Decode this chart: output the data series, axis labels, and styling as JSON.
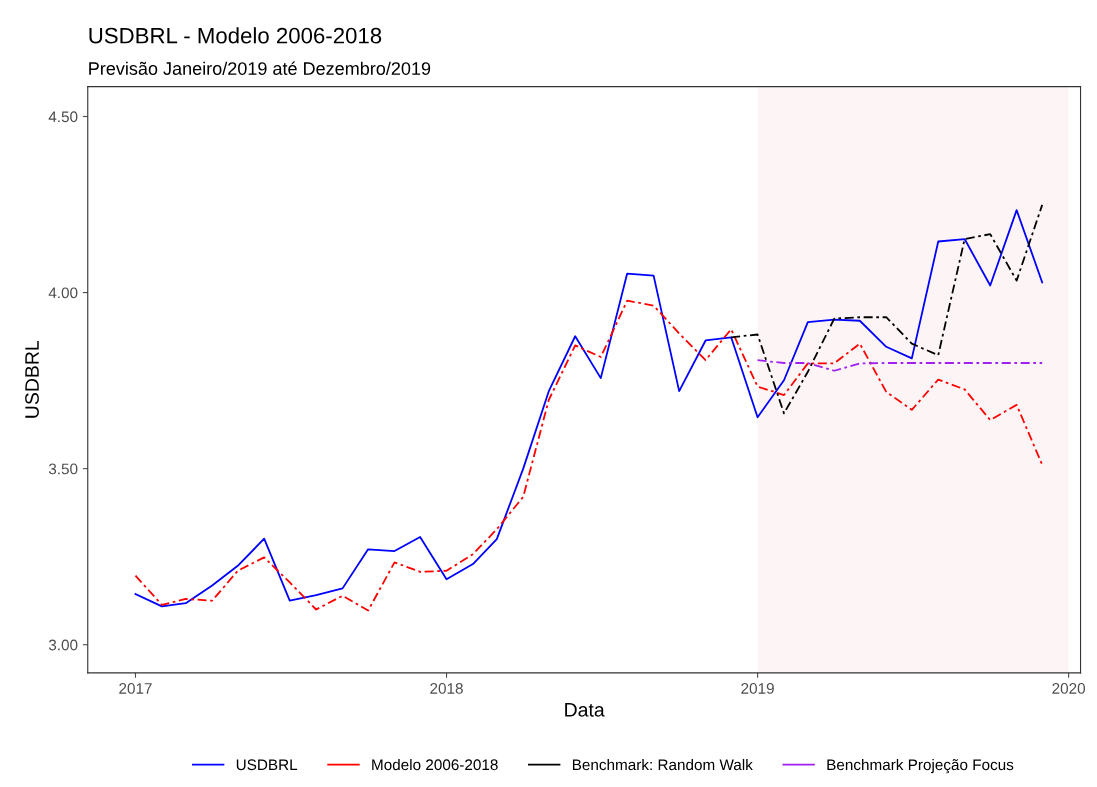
{
  "chart_data": {
    "type": "line",
    "title": "USDBRL - Modelo 2006-2018",
    "subtitle": "Previsão Janeiro/2019 até Dezembro/2019",
    "xlabel": "Data",
    "ylabel": "USDBRL",
    "xlim": [
      "2016-11-06",
      "2020-01-15"
    ],
    "xticks": [
      "2017",
      "2018",
      "2019",
      "2020"
    ],
    "ylim": [
      2.92,
      4.585
    ],
    "yticks": [
      {
        "value": 3,
        "label": "3.00"
      },
      {
        "value": 3.5,
        "label": "3.50"
      },
      {
        "value": 4,
        "label": "4.00"
      },
      {
        "value": 4.5,
        "label": "4.50"
      }
    ],
    "grid": false,
    "legend": "bottom",
    "marker": "none",
    "bands": [
      {
        "axis": "x",
        "from": "2019-01",
        "to": "2020-01",
        "color": "#fdf5f5"
      }
    ],
    "series": [
      {
        "name": "USDBRL",
        "color": "#0000ff",
        "line_style": "solid",
        "x": [
          "2017-01",
          "2017-02",
          "2017-03",
          "2017-04",
          "2017-05",
          "2017-06",
          "2017-07",
          "2017-08",
          "2017-09",
          "2017-10",
          "2017-11",
          "2017-12",
          "2018-01",
          "2018-02",
          "2018-03",
          "2018-04",
          "2018-05",
          "2018-06",
          "2018-07",
          "2018-08",
          "2018-09",
          "2018-10",
          "2018-11",
          "2018-12",
          "2019-01",
          "2019-02",
          "2019-03",
          "2019-04",
          "2019-05",
          "2019-06",
          "2019-07",
          "2019-08",
          "2019-09",
          "2019-10",
          "2019-11",
          "2019-12"
        ],
        "values": [
          3.144,
          3.109,
          3.118,
          3.168,
          3.224,
          3.301,
          3.125,
          3.141,
          3.16,
          3.271,
          3.266,
          3.306,
          3.186,
          3.229,
          3.3,
          3.5,
          3.72,
          3.876,
          3.757,
          4.054,
          4.048,
          3.72,
          3.864,
          3.873,
          3.646,
          3.751,
          3.916,
          3.923,
          3.92,
          3.846,
          3.813,
          4.145,
          4.152,
          4.02,
          4.234,
          4.029
        ]
      },
      {
        "name": "Modelo 2006-2018",
        "color": "#ff0000",
        "line_style": "dashed",
        "x": [
          "2017-01",
          "2017-02",
          "2017-03",
          "2017-04",
          "2017-05",
          "2017-06",
          "2017-07",
          "2017-08",
          "2017-09",
          "2017-10",
          "2017-11",
          "2017-12",
          "2018-01",
          "2018-02",
          "2018-03",
          "2018-04",
          "2018-05",
          "2018-06",
          "2018-07",
          "2018-08",
          "2018-09",
          "2018-10",
          "2018-11",
          "2018-12",
          "2019-01",
          "2019-02",
          "2019-03",
          "2019-04",
          "2019-05",
          "2019-06",
          "2019-07",
          "2019-08",
          "2019-09",
          "2019-10",
          "2019-11",
          "2019-12"
        ],
        "values": [
          3.196,
          3.113,
          3.13,
          3.125,
          3.21,
          3.248,
          3.177,
          3.1,
          3.139,
          3.097,
          3.234,
          3.207,
          3.21,
          3.257,
          3.328,
          3.42,
          3.695,
          3.85,
          3.817,
          3.977,
          3.963,
          3.884,
          3.808,
          3.896,
          3.733,
          3.709,
          3.799,
          3.799,
          3.855,
          3.718,
          3.667,
          3.753,
          3.725,
          3.638,
          3.681,
          3.511
        ]
      },
      {
        "name": "Benchmark: Random Walk",
        "color": "#000000",
        "line_style": "dashed",
        "x": [
          "2018-12",
          "2019-01",
          "2019-02",
          "2019-03",
          "2019-04",
          "2019-05",
          "2019-06",
          "2019-07",
          "2019-08",
          "2019-09",
          "2019-10",
          "2019-11",
          "2019-12"
        ],
        "values": [
          3.873,
          3.881,
          3.657,
          3.775,
          3.926,
          3.93,
          3.93,
          3.855,
          3.822,
          4.152,
          4.166,
          4.034,
          4.249
        ]
      },
      {
        "name": "Benchmark Projeção Focus",
        "color": "#a020f0",
        "line_style": "dashed",
        "x": [
          "2019-01",
          "2019-02",
          "2019-03",
          "2019-04",
          "2019-05",
          "2019-06",
          "2019-07",
          "2019-08",
          "2019-09",
          "2019-10",
          "2019-11",
          "2019-12"
        ],
        "values": [
          3.808,
          3.8,
          3.8,
          3.778,
          3.799,
          3.8,
          3.8,
          3.8,
          3.8,
          3.8,
          3.8,
          3.8
        ]
      }
    ]
  }
}
